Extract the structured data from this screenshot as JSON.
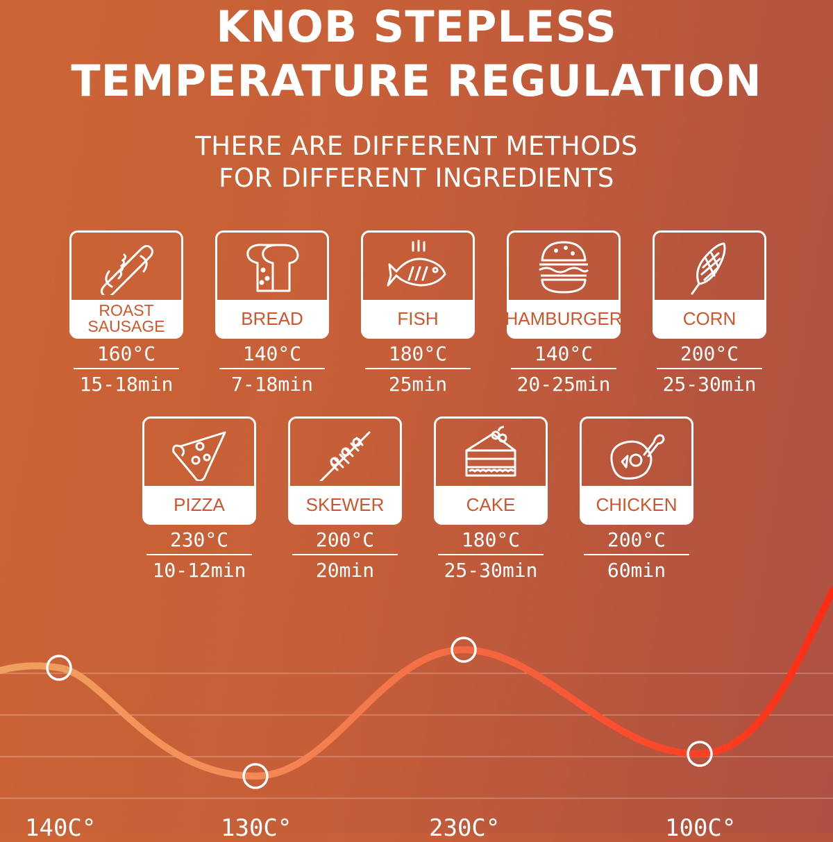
{
  "header": {
    "title_line1": "KNOB STEPLESS",
    "title_line2": "TEMPERATURE REGULATION",
    "subtitle_line1": "THERE ARE DIFFERENT METHODS",
    "subtitle_line2": "FOR DIFFERENT INGREDIENTS"
  },
  "foods": [
    {
      "label": "ROAST SAUSAGE",
      "temp": "160°C",
      "time": "15-18min",
      "icon": "hotdog-icon"
    },
    {
      "label": "BREAD",
      "temp": "140°C",
      "time": "7-18min",
      "icon": "bread-icon"
    },
    {
      "label": "FISH",
      "temp": "180°C",
      "time": "25min",
      "icon": "fish-icon"
    },
    {
      "label": "HAMBURGER",
      "temp": "140°C",
      "time": "20-25min",
      "icon": "hamburger-icon"
    },
    {
      "label": "CORN",
      "temp": "200°C",
      "time": "25-30min",
      "icon": "corn-icon"
    },
    {
      "label": "PIZZA",
      "temp": "230°C",
      "time": "10-12min",
      "icon": "pizza-icon"
    },
    {
      "label": "SKEWER",
      "temp": "200°C",
      "time": "20min",
      "icon": "skewer-icon"
    },
    {
      "label": "CAKE",
      "temp": "180°C",
      "time": "25-30min",
      "icon": "cake-icon"
    },
    {
      "label": "CHICKEN",
      "temp": "200°C",
      "time": "60min",
      "icon": "chicken-icon"
    }
  ],
  "curve": {
    "points": [
      "140C°",
      "130C°",
      "230C°",
      "100C°"
    ],
    "colors": [
      "#f0a15e",
      "#f48a58",
      "#f5643f",
      "#ff2a12"
    ]
  }
}
